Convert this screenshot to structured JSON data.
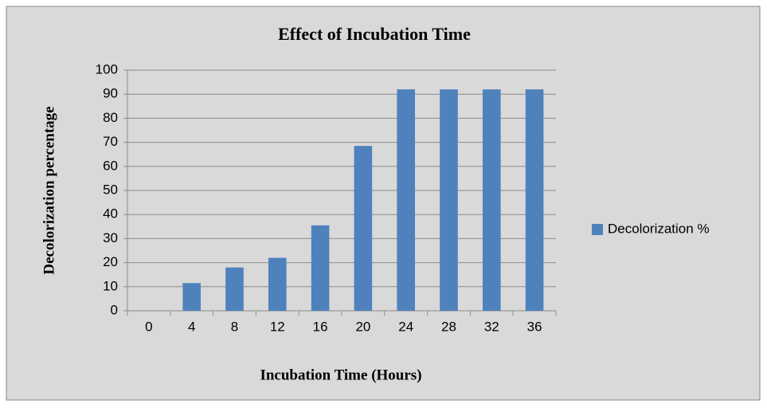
{
  "chart_data": {
    "type": "bar",
    "title": "Effect of Incubation Time",
    "x_label": "Incubation Time (Hours)",
    "y_label": "Decolorization percentage",
    "categories": [
      "0",
      "4",
      "8",
      "12",
      "16",
      "20",
      "24",
      "28",
      "32",
      "36"
    ],
    "series": [
      {
        "name": "Decolorization %",
        "color": "#4f81bd",
        "values": [
          0,
          11.5,
          18,
          22,
          35.5,
          68.5,
          92,
          92,
          92,
          92
        ]
      }
    ],
    "ylim": [
      0,
      100
    ],
    "yticks": [
      0,
      10,
      20,
      30,
      40,
      50,
      60,
      70,
      80,
      90,
      100
    ],
    "grid": true,
    "legend": "right"
  }
}
